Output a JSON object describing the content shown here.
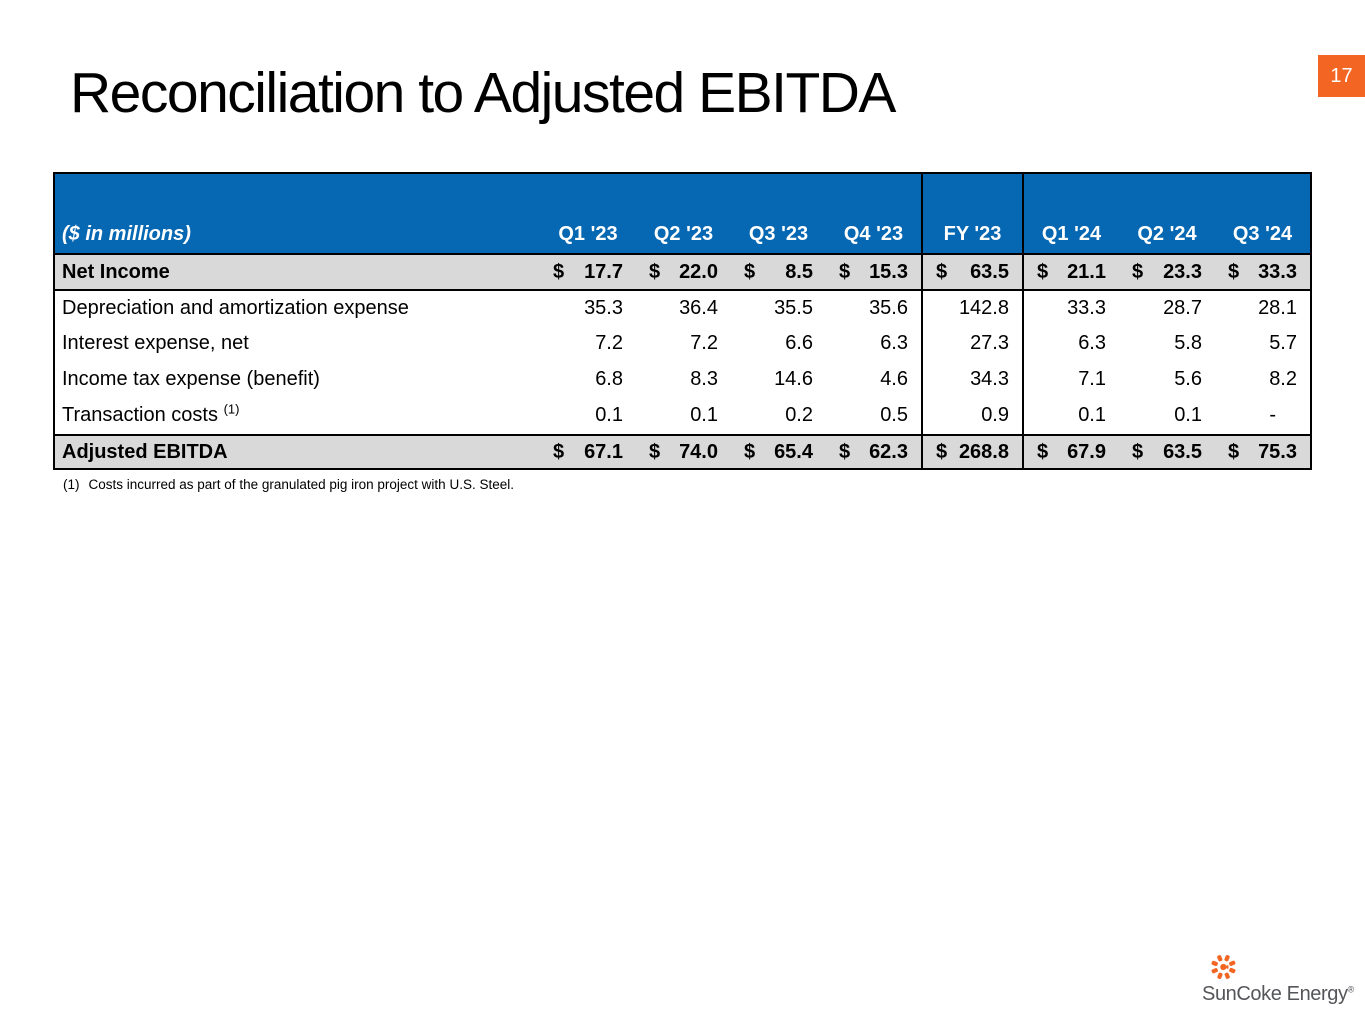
{
  "page": {
    "number": "17",
    "title": "Reconciliation to Adjusted EBITDA"
  },
  "colors": {
    "header_blue": "#0667B2",
    "row_gray": "#D9D9D9",
    "accent_orange": "#F26522",
    "logo_text_gray": "#55565A"
  },
  "table": {
    "units_label": "($ in millions)",
    "columns": [
      "Q1 '23",
      "Q2 '23",
      "Q3 '23",
      "Q4 '23",
      "FY '23",
      "Q1 '24",
      "Q2 '24",
      "Q3 '24"
    ],
    "fy_column_index": 4,
    "rows": [
      {
        "label": "Net Income",
        "sup": "",
        "style": "total net-income",
        "dollar": true,
        "values": [
          "17.7",
          "22.0",
          "8.5",
          "15.3",
          "63.5",
          "21.1",
          "23.3",
          "33.3"
        ]
      },
      {
        "label": "Depreciation and amortization expense",
        "sup": "",
        "style": "normal",
        "dollar": false,
        "values": [
          "35.3",
          "36.4",
          "35.5",
          "35.6",
          "142.8",
          "33.3",
          "28.7",
          "28.1"
        ]
      },
      {
        "label": "Interest expense, net",
        "sup": "",
        "style": "normal",
        "dollar": false,
        "values": [
          "7.2",
          "7.2",
          "6.6",
          "6.3",
          "27.3",
          "6.3",
          "5.8",
          "5.7"
        ]
      },
      {
        "label": "Income tax expense (benefit)",
        "sup": "",
        "style": "normal",
        "dollar": false,
        "values": [
          "6.8",
          "8.3",
          "14.6",
          "4.6",
          "34.3",
          "7.1",
          "5.6",
          "8.2"
        ]
      },
      {
        "label": "Transaction costs",
        "sup": "(1)",
        "style": "normal",
        "dollar": false,
        "values": [
          "0.1",
          "0.1",
          "0.2",
          "0.5",
          "0.9",
          "0.1",
          "0.1",
          "-"
        ]
      },
      {
        "label": "Adjusted EBITDA",
        "sup": "",
        "style": "total ebitda",
        "dollar": true,
        "values": [
          "67.1",
          "74.0",
          "65.4",
          "62.3",
          "268.8",
          "67.9",
          "63.5",
          "75.3"
        ]
      }
    ],
    "currency_symbol": "$"
  },
  "footnote": {
    "marker": "(1)",
    "text": "Costs incurred as part of the granulated pig iron project with U.S. Steel."
  },
  "logo": {
    "icon": "sun-icon",
    "text": "SunCoke Energy",
    "registered": "®"
  }
}
